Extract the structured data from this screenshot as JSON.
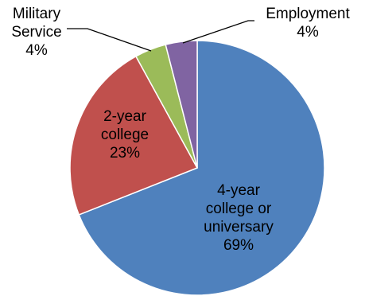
{
  "chart_data": {
    "type": "pie",
    "slices": [
      {
        "label": [
          "4-year",
          "college or",
          "universary"
        ],
        "value_label": "69%",
        "value": 69,
        "color": "#4f81bd"
      },
      {
        "label": [
          "2-year",
          "college"
        ],
        "value_label": "23%",
        "value": 23,
        "color": "#c0504d"
      },
      {
        "label": [
          "Military",
          "Service"
        ],
        "value_label": "4%",
        "value": 4,
        "color": "#9bbb59"
      },
      {
        "label": [
          "Employment"
        ],
        "value_label": "4%",
        "value": 4,
        "color": "#8064a2"
      }
    ],
    "start_angle_deg": 0,
    "direction": "clockwise"
  }
}
